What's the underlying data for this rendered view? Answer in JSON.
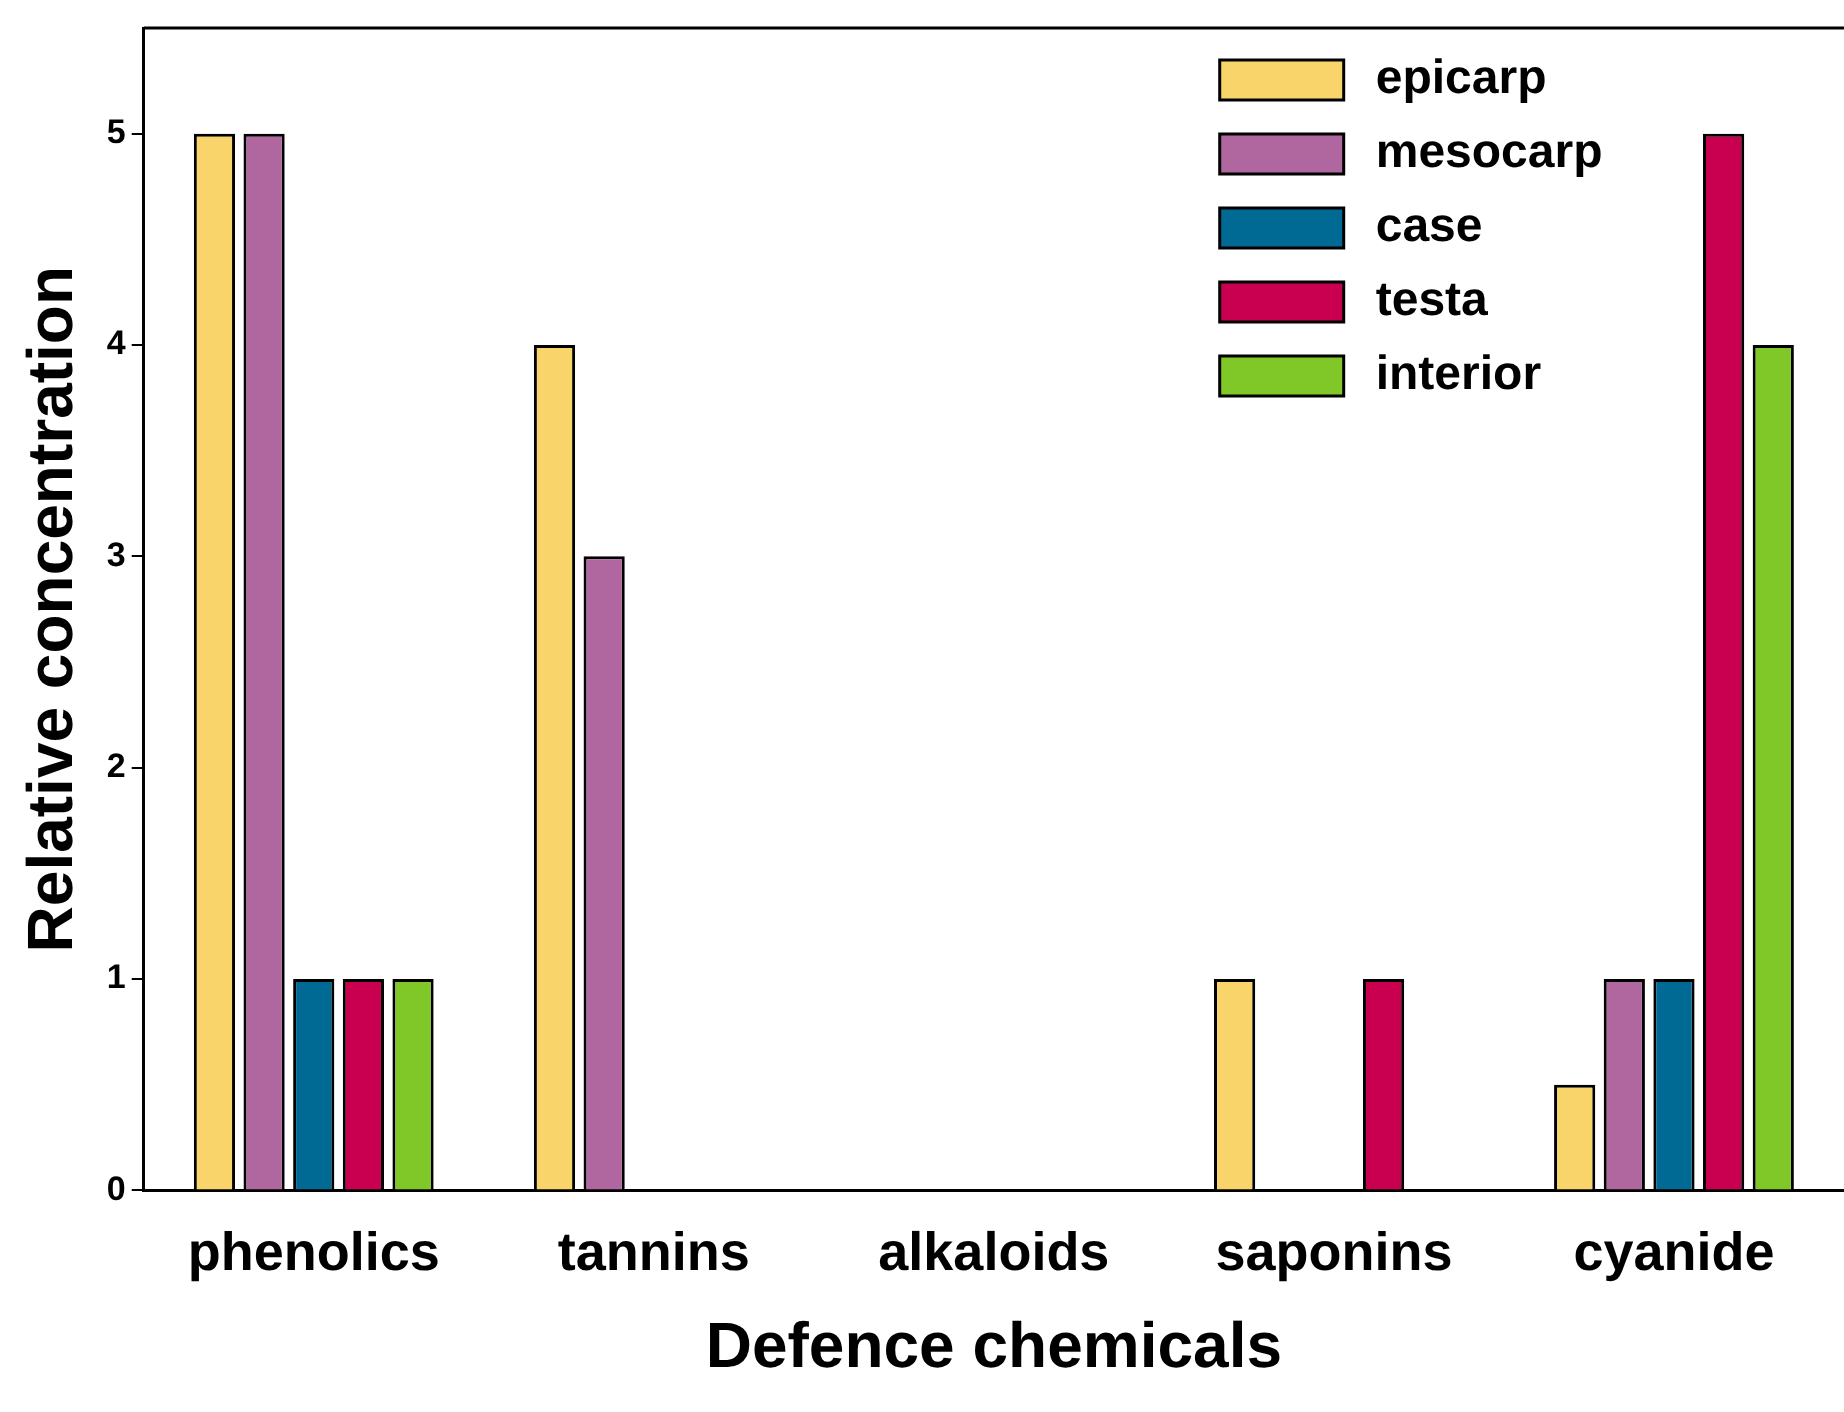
{
  "chart_data": {
    "type": "bar",
    "xlabel": "Defence chemicals",
    "ylabel": "Relative concentration",
    "categories": [
      "phenolics",
      "tannins",
      "alkaloids",
      "saponins",
      "cyanide"
    ],
    "series": [
      {
        "name": "epicarp",
        "color": "#f9d46b",
        "values": [
          5,
          4,
          0,
          1,
          0.5
        ]
      },
      {
        "name": "mesocarp",
        "color": "#b0679f",
        "values": [
          5,
          3,
          0,
          0,
          1
        ]
      },
      {
        "name": "case",
        "color": "#006994",
        "values": [
          1,
          0,
          0,
          0,
          1
        ]
      },
      {
        "name": "testa",
        "color": "#c8004f",
        "values": [
          1,
          0,
          0,
          1,
          5
        ]
      },
      {
        "name": "interior",
        "color": "#80c828",
        "values": [
          1,
          0,
          0,
          0,
          4
        ]
      }
    ],
    "ylim": [
      0,
      5.5
    ],
    "yticks": [
      0,
      1,
      2,
      3,
      4,
      5
    ],
    "grid": false,
    "legend": "top right"
  }
}
